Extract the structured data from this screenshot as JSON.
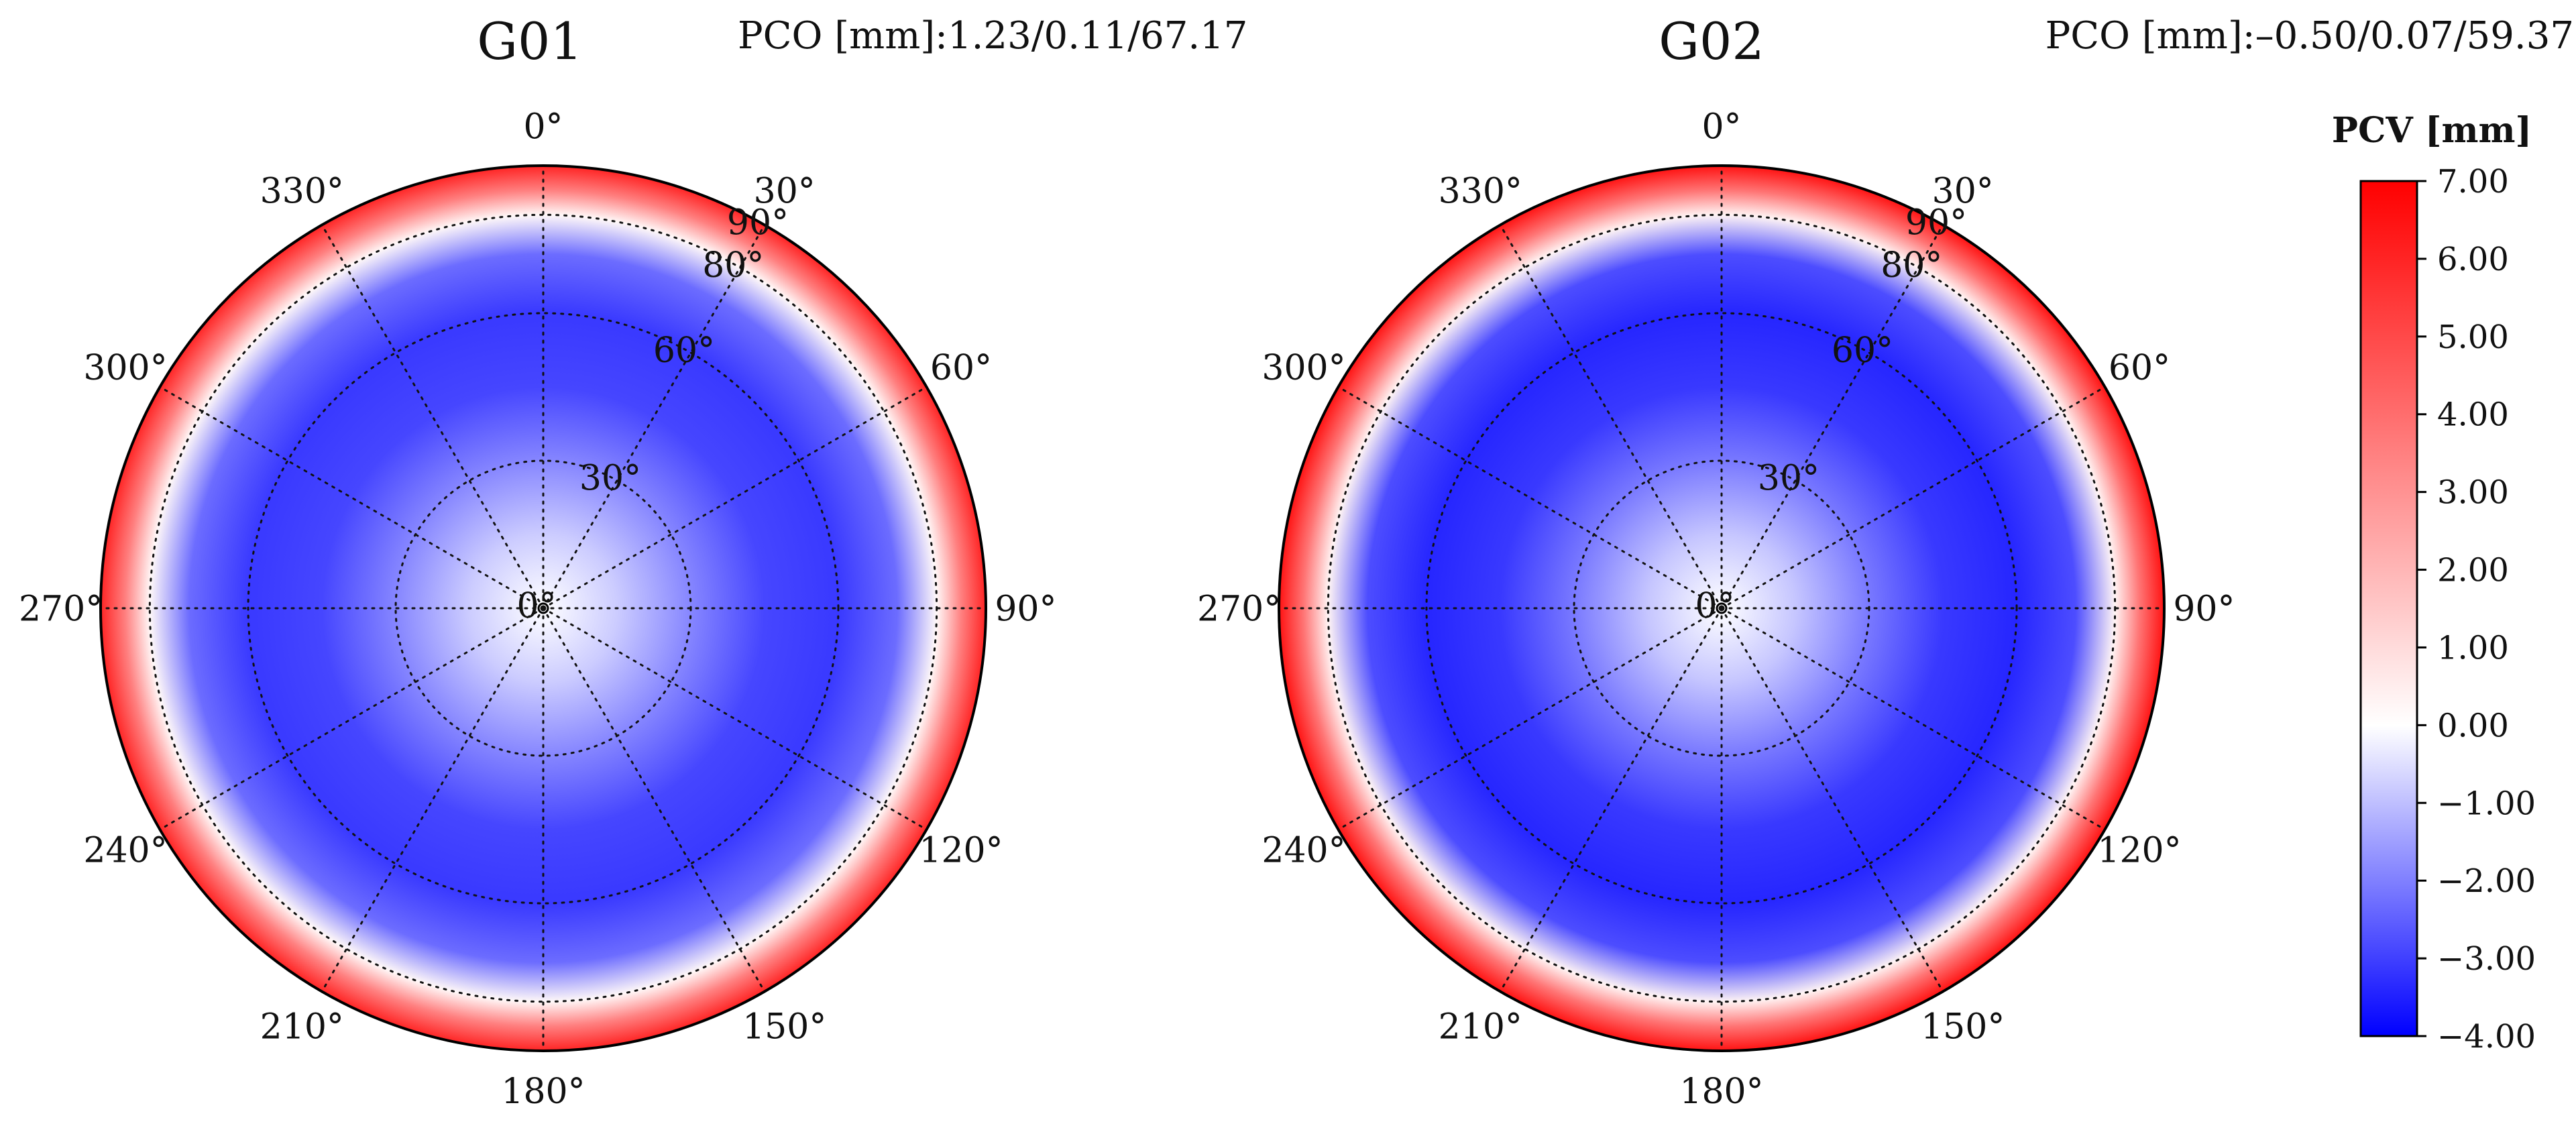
{
  "chart_data": {
    "type": "heatmap",
    "projection": "polar-skyplot",
    "axes": {
      "azimuth": {
        "ticks_deg": [
          0,
          30,
          60,
          90,
          120,
          150,
          180,
          210,
          240,
          270,
          300,
          330
        ],
        "tick_labels": [
          "0°",
          "30°",
          "60°",
          "90°",
          "120°",
          "150°",
          "180°",
          "210°",
          "240°",
          "270°",
          "300°",
          "330°"
        ],
        "direction": "clockwise",
        "zero_location": "top"
      },
      "radial": {
        "range": [
          0,
          90
        ],
        "ticks": [
          0,
          30,
          60,
          80,
          90
        ],
        "tick_labels": [
          "0°",
          "30°",
          "60°",
          "80°",
          "90°"
        ],
        "label_azimuth_deg": 30
      },
      "grid": true
    },
    "colorbar": {
      "label": "PCV [mm]",
      "range": [
        -4.0,
        7.0
      ],
      "ticks": [
        7.0,
        6.0,
        5.0,
        4.0,
        3.0,
        2.0,
        1.0,
        0.0,
        -1.0,
        -2.0,
        -3.0,
        -4.0
      ],
      "tick_labels": [
        "7.00",
        "6.00",
        "5.00",
        "4.00",
        "3.00",
        "2.00",
        "1.00",
        "0.00",
        "−1.00",
        "−2.00",
        "−3.00",
        "−4.00"
      ],
      "colormap": "bwr",
      "colors": {
        "low": "#0000ff",
        "mid": "#ffffff",
        "high": "#ff0000"
      },
      "placement": "right"
    },
    "panels": [
      {
        "title": "G01",
        "pco_text": "PCO [mm]:1.23/0.11/67.17",
        "pcv_profile": {
          "radius_deg": [
            0,
            15,
            30,
            45,
            60,
            72,
            80,
            85,
            90
          ],
          "pcv_mm": [
            0.0,
            -0.8,
            -1.9,
            -2.9,
            -3.1,
            -2.3,
            0.2,
            3.5,
            6.0
          ]
        }
      },
      {
        "title": "G02",
        "pco_text": "PCO [mm]:–0.50/0.07/59.37",
        "pcv_profile": {
          "radius_deg": [
            0,
            15,
            30,
            45,
            60,
            72,
            80,
            85,
            90
          ],
          "pcv_mm": [
            0.0,
            -0.9,
            -2.1,
            -3.1,
            -3.4,
            -2.8,
            0.3,
            3.8,
            6.5
          ]
        }
      }
    ]
  }
}
